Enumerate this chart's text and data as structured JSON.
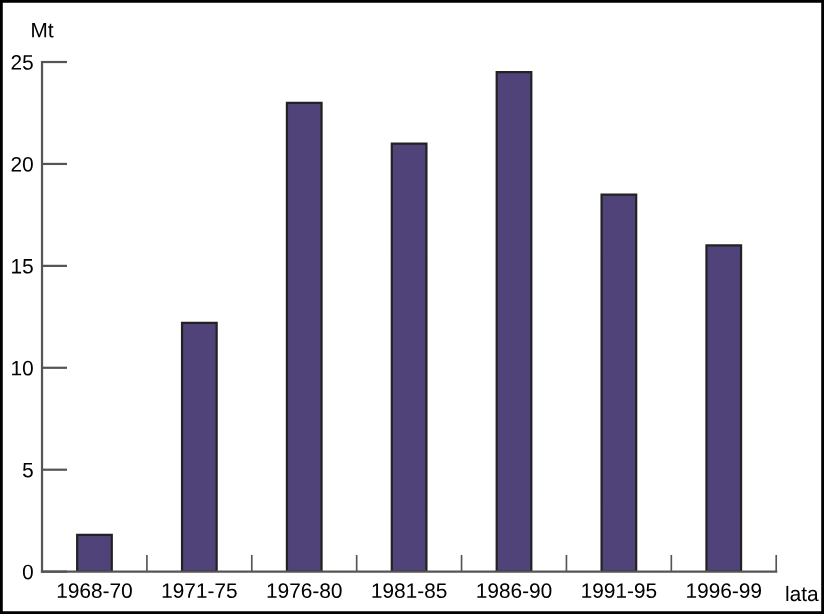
{
  "chart_data": {
    "type": "bar",
    "xlabel": "lata",
    "ylabel": "Mt",
    "categories": [
      "1968-70",
      "1971-75",
      "1976-80",
      "1981-85",
      "1986-90",
      "1991-95",
      "1996-99"
    ],
    "values": [
      1.8,
      12.2,
      23.0,
      21.0,
      24.5,
      18.5,
      16.0
    ],
    "color": "#4f437a",
    "ylim": [
      0,
      25
    ],
    "yticks": [
      0,
      5,
      10,
      15,
      20,
      25
    ]
  }
}
